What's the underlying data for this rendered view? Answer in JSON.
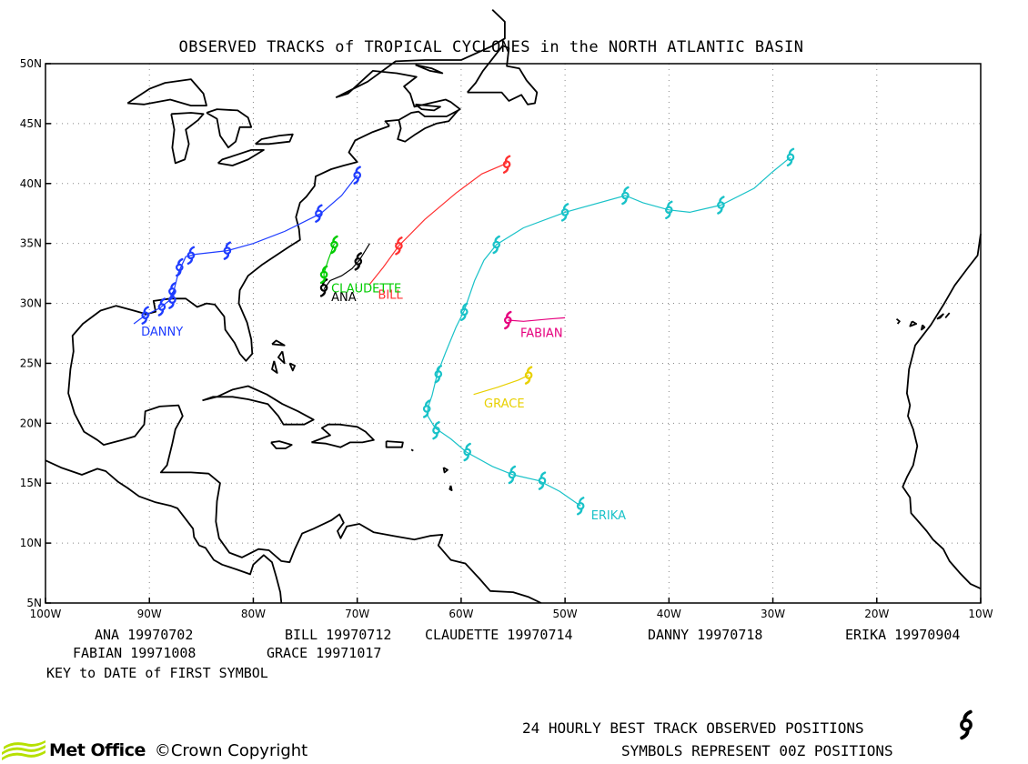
{
  "title": "OBSERVED TRACKS of TROPICAL CYCLONES in the NORTH ATLANTIC BASIN",
  "axes": {
    "lon_ticks": [
      "100W",
      "90W",
      "80W",
      "70W",
      "60W",
      "50W",
      "40W",
      "30W",
      "20W",
      "10W"
    ],
    "lat_ticks": [
      "50N",
      "45N",
      "40N",
      "35N",
      "30N",
      "25N",
      "20N",
      "15N",
      "10N",
      "5N"
    ],
    "lon_range": [
      -100,
      -10
    ],
    "lat_range": [
      5,
      50
    ],
    "grid": true
  },
  "storms": [
    {
      "name": "ANA",
      "color": "#000000",
      "start": "19970702",
      "track": [
        [
          -73.2,
          31.2
        ],
        [
          -72.6,
          31.9
        ],
        [
          -71.5,
          32.3
        ],
        [
          -70.5,
          32.9
        ],
        [
          -69.8,
          33.6
        ],
        [
          -69.3,
          34.3
        ],
        [
          -68.8,
          35.0
        ]
      ],
      "symbols": [
        [
          -73.2,
          31.3
        ],
        [
          -69.9,
          33.5
        ]
      ],
      "label_pos": [
        -72.5,
        30.2
      ]
    },
    {
      "name": "BILL",
      "color": "#ff3030",
      "start": "19970712",
      "track": [
        [
          -68.8,
          31.6
        ],
        [
          -67.5,
          33.0
        ],
        [
          -66.0,
          34.8
        ],
        [
          -63.5,
          37.0
        ],
        [
          -60.5,
          39.2
        ],
        [
          -58.0,
          40.8
        ],
        [
          -55.6,
          41.7
        ]
      ],
      "symbols": [
        [
          -66.0,
          34.8
        ],
        [
          -55.6,
          41.6
        ]
      ],
      "label_pos": [
        -68.0,
        30.4
      ]
    },
    {
      "name": "CLAUDETTE",
      "color": "#00cc00",
      "start": "19970714",
      "track": [
        [
          -73.2,
          31.8
        ],
        [
          -73.2,
          32.5
        ],
        [
          -72.8,
          33.6
        ],
        [
          -72.2,
          35.0
        ]
      ],
      "symbols": [
        [
          -73.2,
          32.4
        ],
        [
          -72.2,
          34.9
        ]
      ],
      "label_pos": [
        -72.5,
        30.9
      ]
    },
    {
      "name": "DANNY",
      "color": "#1e3cff",
      "start": "19970718",
      "track": [
        [
          -91.5,
          28.3
        ],
        [
          -90.4,
          29.0
        ],
        [
          -89.0,
          29.6
        ],
        [
          -88.0,
          30.3
        ],
        [
          -87.8,
          30.8
        ],
        [
          -87.6,
          31.2
        ],
        [
          -87.2,
          32.6
        ],
        [
          -86.5,
          33.9
        ],
        [
          -85.5,
          34.1
        ],
        [
          -82.5,
          34.4
        ],
        [
          -80.0,
          35.0
        ],
        [
          -77.0,
          36.0
        ],
        [
          -73.5,
          37.5
        ],
        [
          -71.5,
          39.0
        ],
        [
          -70.0,
          40.7
        ]
      ],
      "symbols": [
        [
          -90.4,
          29.0
        ],
        [
          -88.8,
          29.7
        ],
        [
          -87.8,
          30.3
        ],
        [
          -87.8,
          31.0
        ],
        [
          -87.1,
          33.0
        ],
        [
          -86.0,
          34.0
        ],
        [
          -82.5,
          34.4
        ],
        [
          -73.7,
          37.5
        ],
        [
          -70.0,
          40.7
        ]
      ],
      "label_pos": [
        -90.8,
        27.3
      ]
    },
    {
      "name": "ERIKA",
      "color": "#19c2c8",
      "start": "19970904",
      "track": [
        [
          -48.5,
          13.1
        ],
        [
          -50.5,
          14.3
        ],
        [
          -52.5,
          15.2
        ],
        [
          -55.0,
          15.7
        ],
        [
          -57.0,
          16.4
        ],
        [
          -59.5,
          17.6
        ],
        [
          -61.0,
          18.7
        ],
        [
          -62.5,
          19.6
        ],
        [
          -63.2,
          20.6
        ],
        [
          -63.2,
          21.3
        ],
        [
          -62.8,
          22.3
        ],
        [
          -62.3,
          24.1
        ],
        [
          -61.5,
          25.9
        ],
        [
          -60.5,
          28.0
        ],
        [
          -59.7,
          29.4
        ],
        [
          -58.7,
          31.9
        ],
        [
          -57.8,
          33.6
        ],
        [
          -56.6,
          34.9
        ],
        [
          -54.0,
          36.3
        ],
        [
          -50.0,
          37.6
        ],
        [
          -44.2,
          39.0
        ],
        [
          -42.5,
          38.4
        ],
        [
          -40.0,
          37.8
        ],
        [
          -38.0,
          37.6
        ],
        [
          -35.0,
          38.2
        ],
        [
          -31.8,
          39.6
        ],
        [
          -30.0,
          41.0
        ],
        [
          -28.3,
          42.2
        ]
      ],
      "symbols": [
        [
          -48.5,
          13.1
        ],
        [
          -52.2,
          15.2
        ],
        [
          -55.1,
          15.7
        ],
        [
          -59.4,
          17.6
        ],
        [
          -62.4,
          19.4
        ],
        [
          -63.3,
          21.2
        ],
        [
          -62.2,
          24.1
        ],
        [
          -59.7,
          29.3
        ],
        [
          -56.6,
          34.9
        ],
        [
          -50.0,
          37.6
        ],
        [
          -44.2,
          39.0
        ],
        [
          -40.0,
          37.8
        ],
        [
          -35.0,
          38.2
        ],
        [
          -28.3,
          42.2
        ]
      ],
      "label_pos": [
        -47.5,
        12.0
      ]
    },
    {
      "name": "FABIAN",
      "color": "#e6007e",
      "start": "19971008",
      "track": [
        [
          -55.5,
          28.6
        ],
        [
          -54.0,
          28.5
        ],
        [
          -51.5,
          28.7
        ],
        [
          -50.0,
          28.8
        ]
      ],
      "symbols": [
        [
          -55.5,
          28.6
        ]
      ],
      "label_pos": [
        -54.3,
        27.2
      ]
    },
    {
      "name": "GRACE",
      "color": "#e8d000",
      "start": "19971017",
      "track": [
        [
          -58.8,
          22.4
        ],
        [
          -56.5,
          23.0
        ],
        [
          -54.5,
          23.6
        ],
        [
          -53.5,
          24.0
        ]
      ],
      "symbols": [
        [
          -53.5,
          24.0
        ]
      ],
      "label_pos": [
        -57.8,
        21.3
      ]
    }
  ],
  "key": {
    "row1": [
      "ANA 19970702",
      "BILL 19970712",
      "CLAUDETTE 19970714",
      "DANNY 19970718",
      "ERIKA 19970904"
    ],
    "row2": [
      "FABIAN 19971008",
      "GRACE 19971017"
    ],
    "caption": "KEY to DATE of FIRST SYMBOL"
  },
  "footer": {
    "line1": "24 HOURLY BEST TRACK OBSERVED POSITIONS",
    "line2": "SYMBOLS REPRESENT 00Z POSITIONS",
    "logo": "Met Office",
    "copyright": "©Crown Copyright"
  }
}
